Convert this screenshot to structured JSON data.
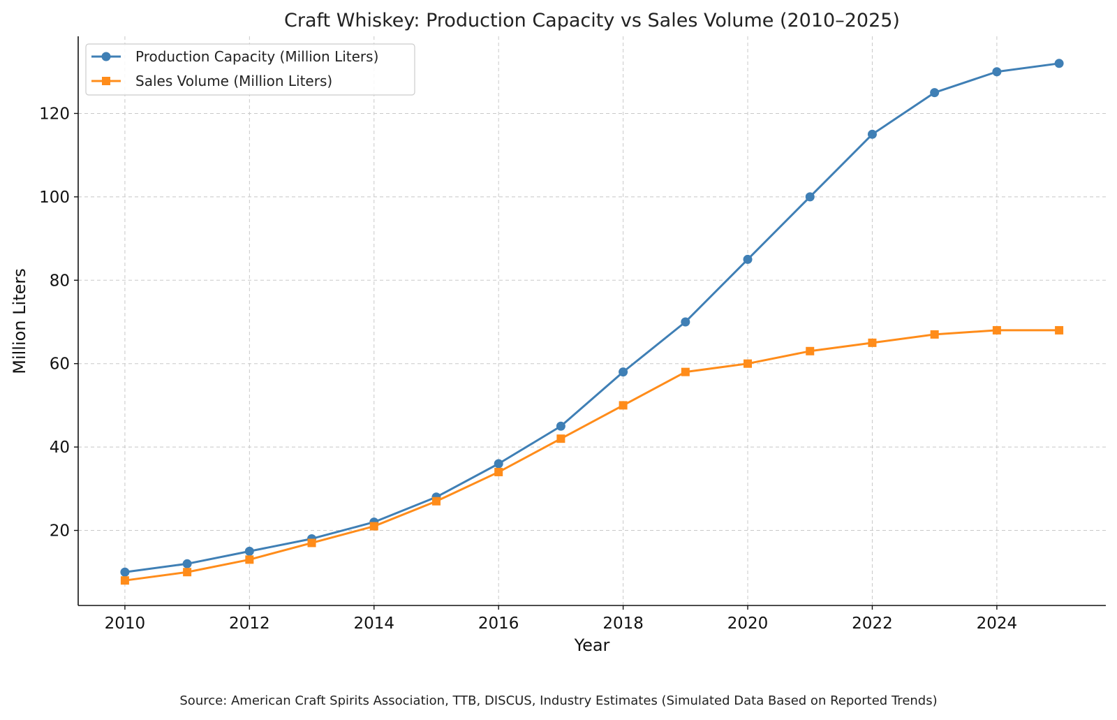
{
  "chart_data": {
    "type": "line",
    "title": "Craft Whiskey: Production Capacity vs Sales Volume (2010–2025)",
    "xlabel": "Year",
    "ylabel": "Million Liters",
    "x": [
      2010,
      2011,
      2012,
      2013,
      2014,
      2015,
      2016,
      2017,
      2018,
      2019,
      2020,
      2021,
      2022,
      2023,
      2024,
      2025
    ],
    "xlim": [
      2009.25,
      2025.75
    ],
    "ylim": [
      2,
      138.5
    ],
    "xticks": [
      2010,
      2012,
      2014,
      2016,
      2018,
      2020,
      2022,
      2024
    ],
    "yticks": [
      20,
      40,
      60,
      80,
      100,
      120
    ],
    "grid": true,
    "legend_position": "top-left",
    "series": [
      {
        "name": "Production Capacity (Million Liters)",
        "color": "#3f7fb5",
        "marker": "circle",
        "values": [
          10,
          12,
          15,
          18,
          22,
          28,
          36,
          45,
          58,
          70,
          85,
          100,
          115,
          125,
          130,
          132
        ]
      },
      {
        "name": "Sales Volume (Million Liters)",
        "color": "#ff8c1a",
        "marker": "square",
        "values": [
          8,
          10,
          13,
          17,
          21,
          27,
          34,
          42,
          50,
          58,
          60,
          63,
          65,
          67,
          68,
          68
        ]
      }
    ],
    "source": "Source: American Craft Spirits Association, TTB, DISCUS, Industry Estimates (Simulated Data Based on Reported Trends)"
  }
}
